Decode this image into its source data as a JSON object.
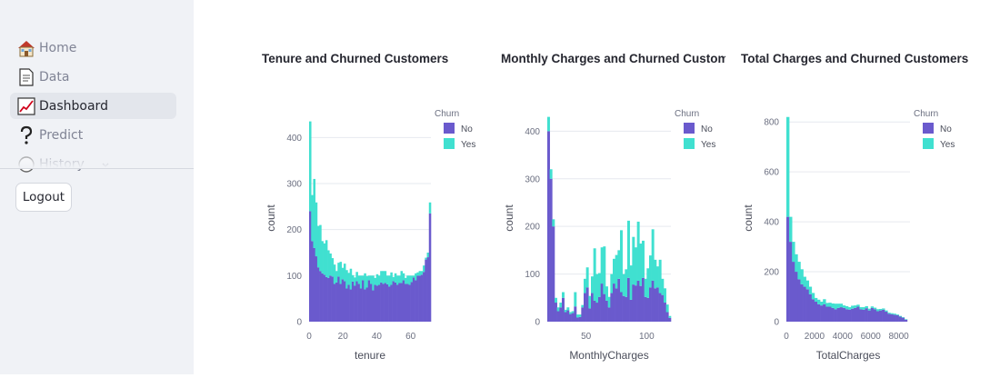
{
  "sidebar": {
    "items": [
      {
        "label": "Home",
        "icon": "house-icon"
      },
      {
        "label": "Data",
        "icon": "page-icon"
      },
      {
        "label": "Dashboard",
        "icon": "chart-increasing-icon"
      },
      {
        "label": "Predict",
        "icon": "question-mark-icon"
      },
      {
        "label": "History",
        "icon": "hourglass-icon"
      }
    ],
    "active": "Dashboard",
    "logout_label": "Logout"
  },
  "colors": {
    "no": "#6a5acd",
    "yes": "#40e0d0",
    "sidebar_bg": "#f0f2f6"
  },
  "legend": {
    "title": "Churn",
    "no": "No",
    "yes": "Yes"
  },
  "chart_data": [
    {
      "type": "bar",
      "title": "Tenure and Churned Customers",
      "xlabel": "tenure",
      "ylabel": "count",
      "barmode": "stack",
      "xlim": [
        0,
        72
      ],
      "ylim": [
        0,
        450
      ],
      "xticks": [
        0,
        20,
        40,
        60
      ],
      "yticks": [
        0,
        100,
        200,
        300,
        400
      ],
      "legend_position": "top-right",
      "bin_width": 1.2,
      "x": [
        0.6,
        1.8,
        3,
        4.2,
        5.4,
        6.6,
        7.8,
        9,
        10.2,
        11.4,
        12.6,
        13.8,
        15,
        16.2,
        17.4,
        18.6,
        19.8,
        21,
        22.2,
        23.4,
        24.6,
        25.8,
        27,
        28.2,
        29.4,
        30.6,
        31.8,
        33,
        34.2,
        35.4,
        36.6,
        37.8,
        39,
        40.2,
        41.4,
        42.6,
        43.8,
        45,
        46.2,
        47.4,
        48.6,
        49.8,
        51,
        52.2,
        53.4,
        54.6,
        55.8,
        57,
        58.2,
        59.4,
        60.6,
        61.8,
        63,
        64.2,
        65.4,
        66.6,
        67.8,
        69,
        70.2,
        71.4
      ],
      "series": [
        {
          "name": "No",
          "values": [
            240,
            175,
            160,
            142,
            118,
            110,
            105,
            102,
            97,
            95,
            100,
            98,
            82,
            85,
            98,
            82,
            92,
            88,
            72,
            80,
            70,
            87,
            78,
            88,
            82,
            72,
            90,
            70,
            74,
            90,
            82,
            68,
            80,
            78,
            80,
            85,
            82,
            84,
            81,
            76,
            80,
            88,
            85,
            80,
            84,
            84,
            90,
            82,
            82,
            80,
            86,
            96,
            90,
            100,
            100,
            102,
            108,
            135,
            140,
            235
          ]
        },
        {
          "name": "Yes",
          "values": [
            195,
            100,
            150,
            117,
            90,
            100,
            70,
            68,
            80,
            60,
            48,
            40,
            42,
            25,
            30,
            48,
            25,
            38,
            40,
            26,
            45,
            14,
            18,
            20,
            18,
            28,
            10,
            35,
            25,
            10,
            18,
            32,
            15,
            25,
            20,
            25,
            28,
            26,
            19,
            24,
            27,
            9,
            20,
            20,
            16,
            26,
            15,
            13,
            18,
            20,
            14,
            4,
            15,
            7,
            10,
            8,
            14,
            4,
            10,
            24
          ]
        }
      ]
    },
    {
      "type": "bar",
      "title": "Monthly Charges and Churned Custome",
      "xlabel": "MonthlyCharges",
      "ylabel": "count",
      "barmode": "stack",
      "xlim": [
        18,
        120
      ],
      "ylim": [
        0,
        435
      ],
      "xticks": [
        50,
        100
      ],
      "yticks": [
        0,
        100,
        200,
        300,
        400
      ],
      "legend_position": "top-right",
      "bin_width": 2,
      "x": [
        19,
        21,
        23,
        25,
        27,
        29,
        31,
        33,
        35,
        37,
        39,
        41,
        43,
        45,
        47,
        49,
        51,
        53,
        55,
        57,
        59,
        61,
        63,
        65,
        67,
        69,
        71,
        73,
        75,
        77,
        79,
        81,
        83,
        85,
        87,
        89,
        91,
        93,
        95,
        97,
        99,
        101,
        103,
        105,
        107,
        109,
        111,
        113,
        115,
        117,
        119
      ],
      "series": [
        {
          "name": "No",
          "values": [
            400,
            300,
            200,
            40,
            22,
            30,
            50,
            20,
            24,
            16,
            18,
            32,
            9,
            10,
            30,
            60,
            72,
            28,
            60,
            44,
            40,
            52,
            80,
            58,
            44,
            30,
            60,
            80,
            70,
            90,
            62,
            54,
            52,
            92,
            46,
            78,
            76,
            86,
            75,
            92,
            52,
            50,
            72,
            86,
            70,
            72,
            60,
            56,
            40,
            20,
            8
          ]
        },
        {
          "name": "Yes",
          "values": [
            30,
            20,
            15,
            10,
            8,
            10,
            12,
            5,
            6,
            4,
            4,
            30,
            6,
            5,
            5,
            30,
            42,
            26,
            35,
            110,
            60,
            50,
            76,
            100,
            30,
            22,
            40,
            52,
            70,
            60,
            130,
            46,
            58,
            120,
            72,
            100,
            80,
            124,
            89,
            78,
            38,
            62,
            67,
            108,
            60,
            44,
            70,
            34,
            30,
            16,
            4
          ]
        }
      ]
    },
    {
      "type": "bar",
      "title": "Total Charges and Churned Customers",
      "xlabel": "TotalCharges",
      "ylabel": "count",
      "barmode": "stack",
      "xlim": [
        0,
        8800
      ],
      "ylim": [
        0,
        830
      ],
      "xticks": [
        0,
        2000,
        4000,
        6000,
        8000
      ],
      "yticks": [
        0,
        200,
        400,
        600,
        800
      ],
      "legend_position": "top-right",
      "bin_width": 200,
      "x": [
        100,
        300,
        500,
        700,
        900,
        1100,
        1300,
        1500,
        1700,
        1900,
        2100,
        2300,
        2500,
        2700,
        2900,
        3100,
        3300,
        3500,
        3700,
        3900,
        4100,
        4300,
        4500,
        4700,
        4900,
        5100,
        5300,
        5500,
        5700,
        5900,
        6100,
        6300,
        6500,
        6700,
        6900,
        7100,
        7300,
        7500,
        7700,
        7900,
        8100,
        8300,
        8500
      ],
      "series": [
        {
          "name": "No",
          "values": [
            420,
            320,
            240,
            200,
            170,
            150,
            140,
            130,
            110,
            90,
            80,
            70,
            65,
            70,
            60,
            60,
            55,
            50,
            55,
            58,
            55,
            50,
            48,
            52,
            55,
            60,
            50,
            48,
            54,
            45,
            55,
            50,
            42,
            45,
            48,
            40,
            32,
            30,
            28,
            26,
            20,
            16,
            8
          ]
        },
        {
          "name": "Yes",
          "values": [
            400,
            100,
            80,
            70,
            70,
            60,
            40,
            35,
            30,
            25,
            15,
            18,
            15,
            20,
            15,
            16,
            18,
            22,
            17,
            14,
            10,
            12,
            10,
            12,
            10,
            8,
            8,
            10,
            8,
            7,
            6,
            6,
            8,
            6,
            5,
            5,
            4,
            4,
            4,
            3,
            3,
            2,
            2
          ]
        }
      ]
    }
  ]
}
